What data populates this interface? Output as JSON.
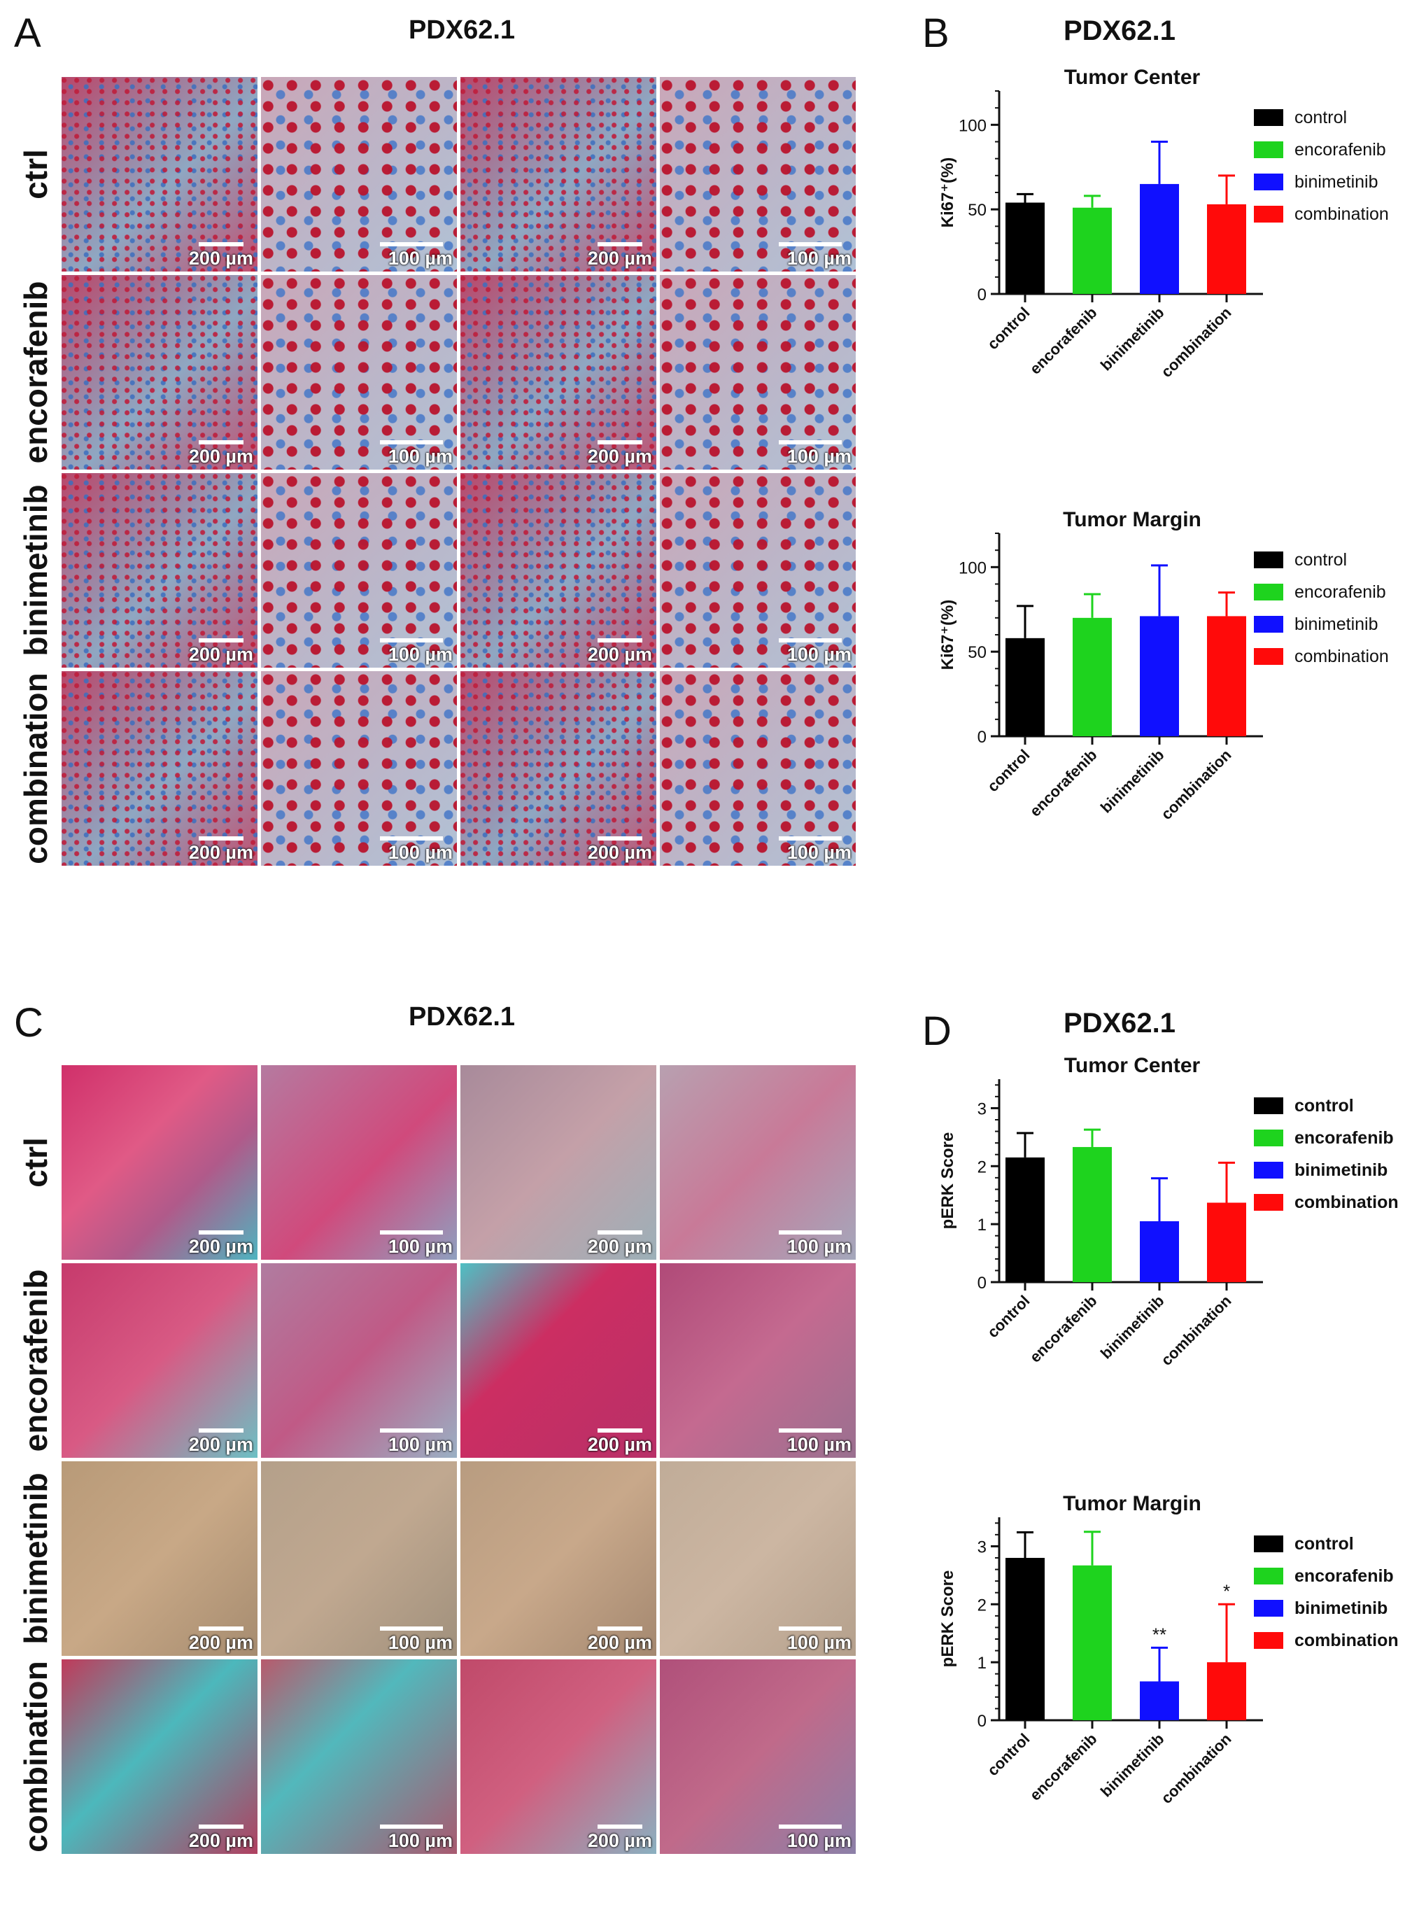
{
  "panel_A": {
    "letter": "A",
    "title": "PDX62.1",
    "rows": [
      "ctrl",
      "encorafenib",
      "binimetinib",
      "combination"
    ],
    "scale_bars": [
      "200 µm",
      "100 µm",
      "200 µm",
      "100 µm"
    ]
  },
  "panel_B": {
    "letter": "B",
    "title": "PDX62.1"
  },
  "panel_C": {
    "letter": "C",
    "title": "PDX62.1",
    "rows": [
      "ctrl",
      "encorafenib",
      "binimetinib",
      "combination"
    ],
    "scale_bars": [
      "200 µm",
      "100 µm",
      "200 µm",
      "100 µm"
    ]
  },
  "panel_D": {
    "letter": "D",
    "title": "PDX62.1"
  },
  "colors": {
    "control": "#000000",
    "encorafenib": "#1ed31e",
    "binimetinib": "#1010ff",
    "combination": "#ff0a0a"
  },
  "chart_data": [
    {
      "type": "bar",
      "panel": "B",
      "title": "Tumor Center",
      "ylabel": "Ki67⁺(%)",
      "ylim": [
        0,
        120
      ],
      "yticks": [
        0,
        50,
        100
      ],
      "categories": [
        "control",
        "encorafenib",
        "binimetinib",
        "combination"
      ],
      "values": [
        54,
        51,
        65,
        53
      ],
      "errors": [
        5,
        7,
        25,
        17
      ],
      "legend": [
        "control",
        "encorafenib",
        "binimetinib",
        "combination"
      ],
      "legend_placement": "right",
      "legend_bold": false,
      "annotations": [
        "",
        "",
        "",
        ""
      ]
    },
    {
      "type": "bar",
      "panel": "B",
      "title": "Tumor Margin",
      "ylabel": "Ki67⁺(%)",
      "ylim": [
        0,
        120
      ],
      "yticks": [
        0,
        50,
        100
      ],
      "categories": [
        "control",
        "encorafenib",
        "binimetinib",
        "combination"
      ],
      "values": [
        58,
        70,
        71,
        71
      ],
      "errors": [
        19,
        14,
        30,
        14
      ],
      "legend": [
        "control",
        "encorafenib",
        "binimetinib",
        "combination"
      ],
      "legend_placement": "right",
      "legend_bold": false,
      "annotations": [
        "",
        "",
        "",
        ""
      ]
    },
    {
      "type": "bar",
      "panel": "D",
      "title": "Tumor Center",
      "ylabel": "pERK Score",
      "ylim": [
        0,
        3.5
      ],
      "yticks": [
        0,
        1,
        2,
        3
      ],
      "categories": [
        "control",
        "encorafenib",
        "binimetinib",
        "combination"
      ],
      "values": [
        2.15,
        2.33,
        1.05,
        1.37
      ],
      "errors": [
        0.42,
        0.3,
        0.74,
        0.69
      ],
      "legend": [
        "control",
        "encorafenib",
        "binimetinib",
        "combination"
      ],
      "legend_placement": "right",
      "legend_bold": true,
      "annotations": [
        "",
        "",
        "",
        ""
      ]
    },
    {
      "type": "bar",
      "panel": "D",
      "title": "Tumor Margin",
      "ylabel": "pERK Score",
      "ylim": [
        0,
        3.5
      ],
      "yticks": [
        0,
        1,
        2,
        3
      ],
      "categories": [
        "control",
        "encorafenib",
        "binimetinib",
        "combination"
      ],
      "values": [
        2.8,
        2.67,
        0.67,
        1.0
      ],
      "errors": [
        0.44,
        0.58,
        0.58,
        1.0
      ],
      "legend": [
        "control",
        "encorafenib",
        "binimetinib",
        "combination"
      ],
      "legend_placement": "right",
      "legend_bold": true,
      "annotations": [
        "",
        "",
        "**",
        "*"
      ]
    }
  ]
}
